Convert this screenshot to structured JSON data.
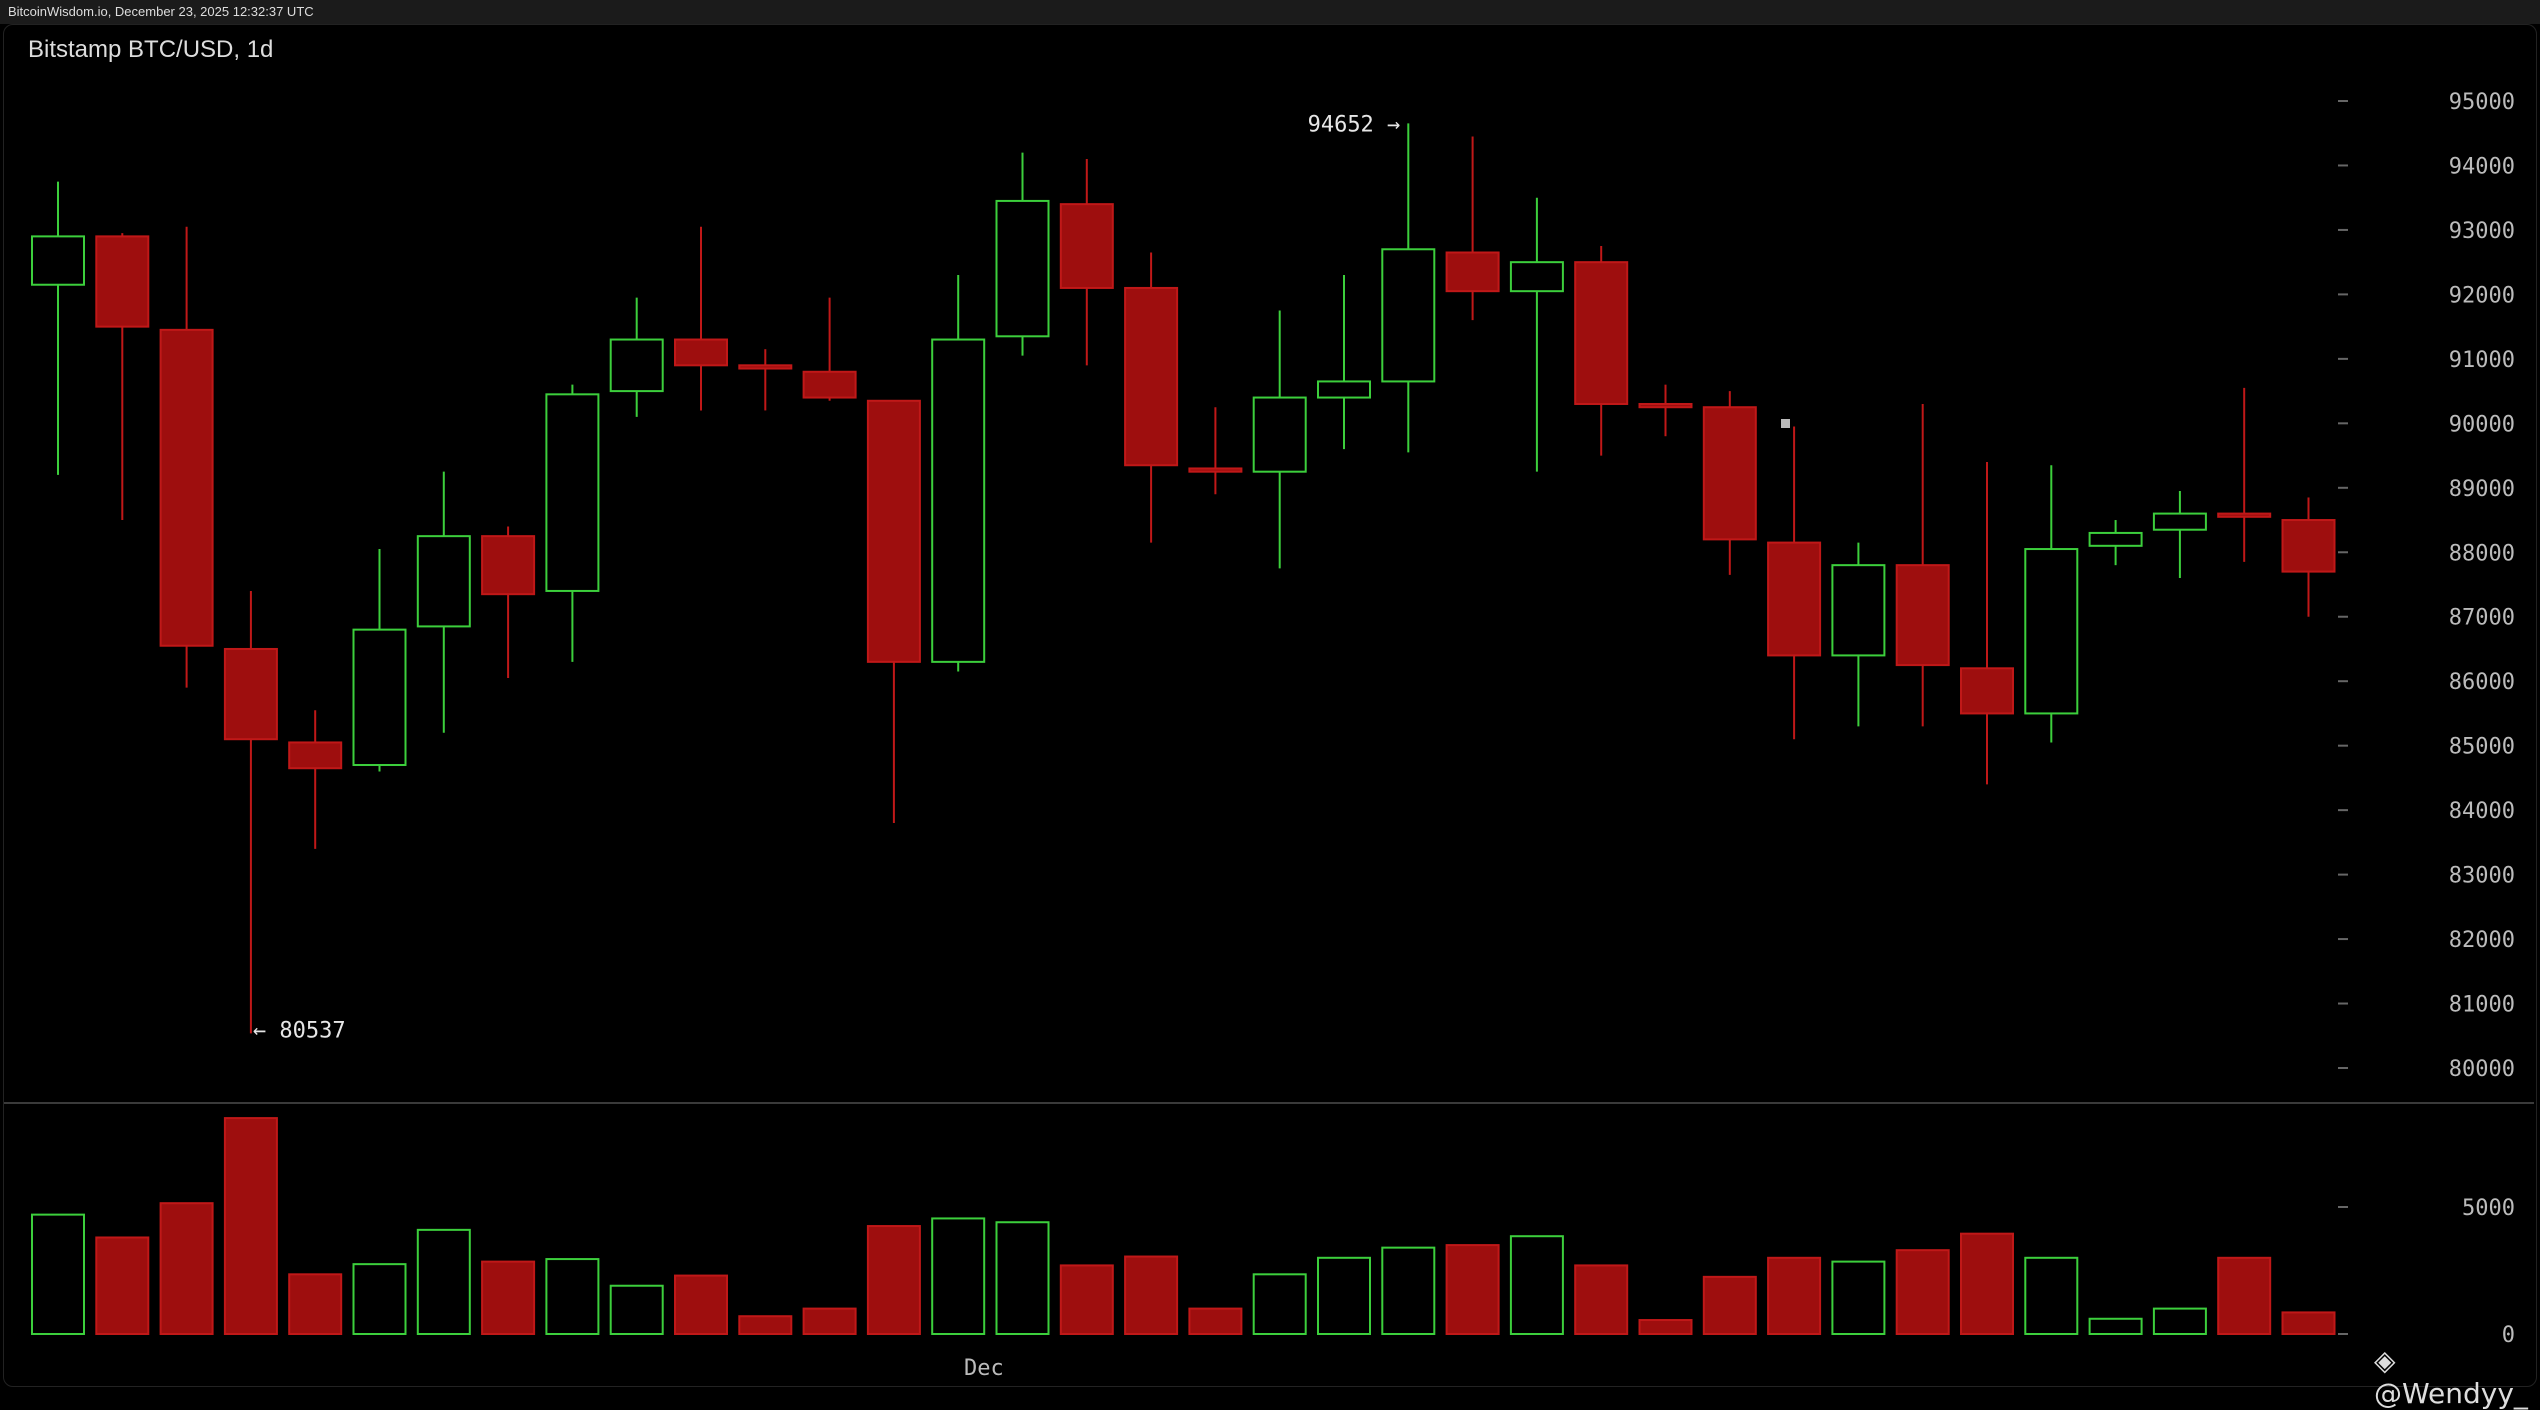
{
  "header": {
    "source_line": "BitcoinWisdom.io, December 23, 2025 12:32:37 UTC"
  },
  "chart_title": "Bitstamp BTC/USD, 1d",
  "watermark": "@Wendyy_",
  "colors": {
    "up": "#3ccf3c",
    "down": "#9e0e0e",
    "down_edge": "#c01818",
    "axis_text": "#bbbbbb",
    "bg": "#000000"
  },
  "chart_data": [
    {
      "type": "candlestick",
      "title": "Bitstamp BTC/USD, 1d",
      "ylim": [
        80000,
        95000
      ],
      "y_ticks": [
        80000,
        81000,
        82000,
        83000,
        84000,
        85000,
        86000,
        87000,
        88000,
        89000,
        90000,
        91000,
        92000,
        93000,
        94000,
        95000
      ],
      "x_tick_label": {
        "label": "Dec",
        "index": 14.4
      },
      "grid": false,
      "annotations": [
        {
          "text": "94652 →",
          "value": 94652,
          "index": 21
        },
        {
          "text": "← 80537",
          "value": 80537,
          "index": 3
        }
      ],
      "candles": [
        {
          "o": 92150,
          "h": 93750,
          "l": 89200,
          "c": 92900
        },
        {
          "o": 92900,
          "h": 92950,
          "l": 88500,
          "c": 91500
        },
        {
          "o": 91450,
          "h": 93050,
          "l": 85900,
          "c": 86550
        },
        {
          "o": 86500,
          "h": 87400,
          "l": 80537,
          "c": 85100
        },
        {
          "o": 85050,
          "h": 85550,
          "l": 83400,
          "c": 84650
        },
        {
          "o": 84700,
          "h": 88050,
          "l": 84600,
          "c": 86800
        },
        {
          "o": 86850,
          "h": 89250,
          "l": 85200,
          "c": 88250
        },
        {
          "o": 88250,
          "h": 88400,
          "l": 86050,
          "c": 87350
        },
        {
          "o": 87400,
          "h": 90600,
          "l": 86300,
          "c": 90450
        },
        {
          "o": 90500,
          "h": 91950,
          "l": 90100,
          "c": 91300
        },
        {
          "o": 91300,
          "h": 93050,
          "l": 90200,
          "c": 90900
        },
        {
          "o": 90900,
          "h": 91150,
          "l": 90200,
          "c": 90850
        },
        {
          "o": 90800,
          "h": 91950,
          "l": 90350,
          "c": 90400
        },
        {
          "o": 90350,
          "h": 90350,
          "l": 83800,
          "c": 86300
        },
        {
          "o": 86300,
          "h": 92300,
          "l": 86150,
          "c": 91300
        },
        {
          "o": 91350,
          "h": 94200,
          "l": 91050,
          "c": 93450
        },
        {
          "o": 93400,
          "h": 94100,
          "l": 90900,
          "c": 92100
        },
        {
          "o": 92100,
          "h": 92650,
          "l": 88150,
          "c": 89350
        },
        {
          "o": 89300,
          "h": 90250,
          "l": 88900,
          "c": 89250
        },
        {
          "o": 89250,
          "h": 91750,
          "l": 87750,
          "c": 90400
        },
        {
          "o": 90400,
          "h": 92300,
          "l": 89600,
          "c": 90650
        },
        {
          "o": 90650,
          "h": 94652,
          "l": 89550,
          "c": 92700
        },
        {
          "o": 92650,
          "h": 94450,
          "l": 91600,
          "c": 92050
        },
        {
          "o": 92050,
          "h": 93500,
          "l": 89250,
          "c": 92500
        },
        {
          "o": 92500,
          "h": 92750,
          "l": 89500,
          "c": 90300
        },
        {
          "o": 90300,
          "h": 90600,
          "l": 89800,
          "c": 90250
        },
        {
          "o": 90250,
          "h": 90500,
          "l": 87650,
          "c": 88200
        },
        {
          "o": 88150,
          "h": 89950,
          "l": 85100,
          "c": 86400
        },
        {
          "o": 86400,
          "h": 88150,
          "l": 85300,
          "c": 87800
        },
        {
          "o": 87800,
          "h": 90300,
          "l": 85300,
          "c": 86250
        },
        {
          "o": 86200,
          "h": 89400,
          "l": 84400,
          "c": 85500
        },
        {
          "o": 85500,
          "h": 89350,
          "l": 85050,
          "c": 88050
        },
        {
          "o": 88100,
          "h": 88500,
          "l": 87800,
          "c": 88300
        },
        {
          "o": 88350,
          "h": 88950,
          "l": 87600,
          "c": 88600
        },
        {
          "o": 88600,
          "h": 90550,
          "l": 87850,
          "c": 88550
        },
        {
          "o": 88500,
          "h": 88850,
          "l": 87000,
          "c": 87700
        }
      ]
    },
    {
      "type": "bar",
      "title": "",
      "ylim": [
        0,
        10000
      ],
      "y_ticks": [
        0,
        5000
      ],
      "values": [
        4700,
        3800,
        5150,
        8500,
        2350,
        2750,
        4100,
        2850,
        2950,
        1900,
        2300,
        700,
        1000,
        4250,
        4550,
        4400,
        2700,
        3050,
        1000,
        2350,
        3000,
        3400,
        3500,
        3850,
        2700,
        550,
        2250,
        3000,
        2850,
        3300,
        3950,
        3000,
        600,
        1000,
        3000,
        850
      ],
      "up": [
        true,
        false,
        false,
        false,
        false,
        true,
        true,
        false,
        true,
        true,
        false,
        false,
        false,
        false,
        true,
        true,
        false,
        false,
        false,
        true,
        true,
        true,
        false,
        true,
        false,
        false,
        false,
        false,
        true,
        false,
        false,
        true,
        true,
        true,
        false,
        false
      ]
    }
  ]
}
